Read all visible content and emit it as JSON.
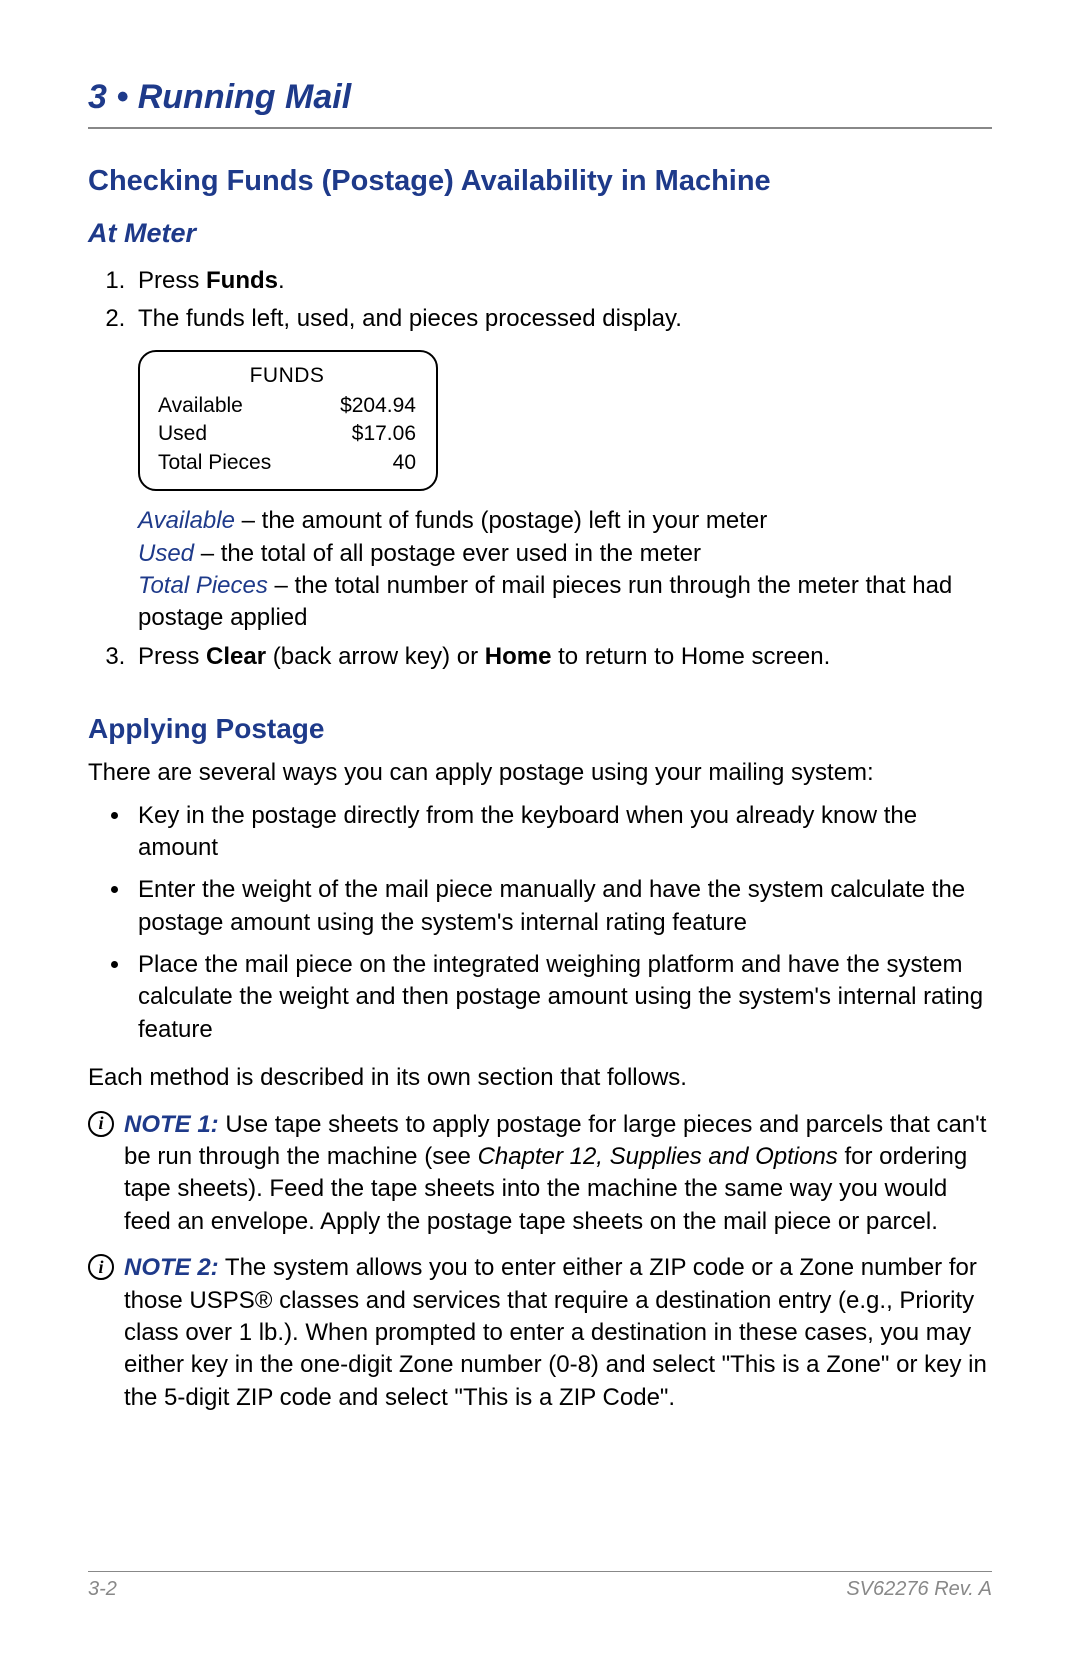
{
  "colors": {
    "heading": "#1e3a8a",
    "rule": "#888888",
    "text": "#000000",
    "footer": "#888888",
    "background": "#ffffff"
  },
  "header": {
    "chapter_num": "3",
    "bullet": "•",
    "chapter_title": "Running Mail"
  },
  "section1": {
    "title": "Checking Funds (Postage) Availability in Machine",
    "subtitle": "At Meter",
    "step1_pre": "Press ",
    "step1_bold": "Funds",
    "step1_post": ".",
    "step2": "The funds left, used, and pieces processed display.",
    "panel": {
      "title": "FUNDS",
      "rows": [
        {
          "label": "Available",
          "value": "$204.94"
        },
        {
          "label": "Used",
          "value": "$17.06"
        },
        {
          "label": "Total Pieces",
          "value": "40"
        }
      ]
    },
    "defs": {
      "d1_term": "Available",
      "d1_rest": " – the amount of funds (postage) left in your meter",
      "d2_term": "Used",
      "d2_rest": " – the total of all postage ever used in the meter",
      "d3_term": "Total Pieces",
      "d3_rest": " – the total number of mail pieces run through the meter that had postage applied"
    },
    "step3_a": "Press ",
    "step3_b": "Clear",
    "step3_c": " (back arrow key) or ",
    "step3_d": "Home",
    "step3_e": " to return to Home screen."
  },
  "section2": {
    "title": "Applying Postage",
    "intro": "There are several ways you can apply postage using your mailing system:",
    "bullets": [
      "Key in the postage directly from the keyboard when you already know the amount",
      "Enter the weight of the mail piece manually and have the system calculate the postage amount using the system's internal rating feature",
      "Place the mail piece on the integrated weighing platform and have the system calculate the weight and then postage amount using the system's internal rating feature"
    ],
    "closing": "Each method is described in its own section that follows.",
    "note1": {
      "label": "NOTE 1:",
      "a": " Use tape sheets to apply postage for large pieces and parcels that can't be run through the machine (see ",
      "ital": "Chapter 12, Supplies and Options",
      "b": " for ordering tape sheets). Feed the tape sheets into the machine the same way you would feed an enve­lope. Apply the postage tape sheets on the mail piece or parcel."
    },
    "note2": {
      "label": "NOTE 2:",
      "body": " The system allows you to enter either a ZIP code or a Zone number for those USPS® classes and services that require a destination entry (e.g., Priority class over 1 lb.). When prompt­ed to enter a destination in these cases, you may either key in the one-digit Zone number (0-8) and select \"This is a Zone\" or key in the 5-digit ZIP code and select \"This is a ZIP Code\"."
    }
  },
  "footer": {
    "left": "3-2",
    "right": "SV62276 Rev. A"
  }
}
